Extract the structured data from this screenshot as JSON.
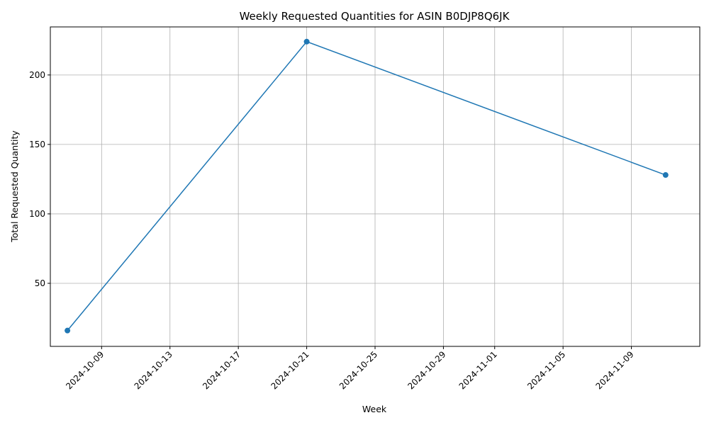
{
  "chart_data": {
    "type": "line",
    "title": "Weekly Requested Quantities for ASIN B0DJP8Q6JK",
    "xlabel": "Week",
    "ylabel": "Total Requested Quantity",
    "x_type": "date",
    "x": [
      "2024-10-07",
      "2024-10-21",
      "2024-11-11"
    ],
    "xlim": [
      "2024-10-06",
      "2024-11-13"
    ],
    "ylim": [
      4.6,
      234.6
    ],
    "xticks": [
      "2024-10-09",
      "2024-10-13",
      "2024-10-17",
      "2024-10-21",
      "2024-10-25",
      "2024-10-29",
      "2024-11-01",
      "2024-11-05",
      "2024-11-09"
    ],
    "yticks": [
      50,
      100,
      150,
      200
    ],
    "x_tick_rotation_deg": 45,
    "series": [
      {
        "values": [
          16,
          224,
          128
        ],
        "color": "#1f77b4",
        "marker": "circle"
      }
    ],
    "grid": true,
    "legend": false
  }
}
